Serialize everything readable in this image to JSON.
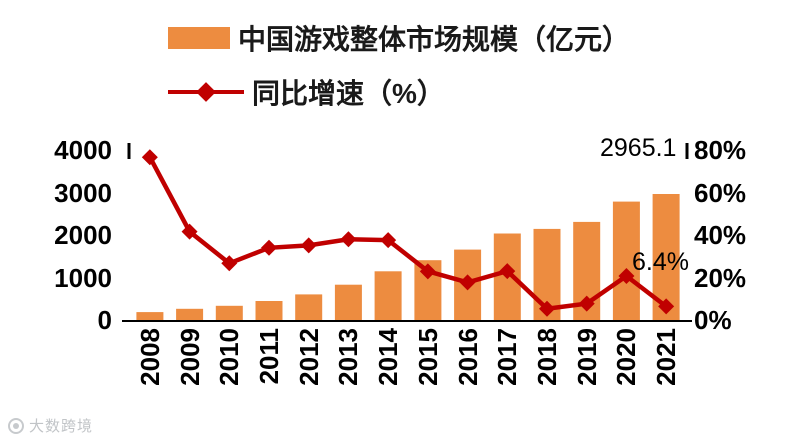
{
  "legend": {
    "bar_label": "中国游戏整体市场规模（亿元）",
    "line_label": "同比增速（%）"
  },
  "colors": {
    "bar": "#ED8C40",
    "line": "#C00000",
    "axis": "#000000"
  },
  "chart_data": {
    "type": "bar+line",
    "title": "",
    "categories": [
      "2008",
      "2009",
      "2010",
      "2011",
      "2012",
      "2013",
      "2014",
      "2015",
      "2016",
      "2017",
      "2018",
      "2019",
      "2020",
      "2021"
    ],
    "series": [
      {
        "name": "中国游戏整体市场规模（亿元）",
        "type": "bar",
        "axis": "left",
        "color": "#ED8C40",
        "values": [
          185.6,
          262.8,
          333.0,
          446.1,
          602.8,
          831.7,
          1144.8,
          1407.0,
          1655.7,
          2036.1,
          2144.4,
          2308.8,
          2786.9,
          2965.1
        ]
      },
      {
        "name": "同比增速（%）",
        "type": "line",
        "axis": "right",
        "color": "#C00000",
        "values": [
          76.6,
          41.6,
          26.7,
          34.0,
          35.1,
          38.0,
          37.6,
          22.9,
          17.7,
          23.0,
          5.3,
          7.7,
          20.7,
          6.4
        ]
      }
    ],
    "left_axis": {
      "min": 0,
      "max": 4000,
      "tick_labels": [
        "0",
        "1000",
        "2000",
        "3000",
        "4000"
      ]
    },
    "right_axis": {
      "min": 0,
      "max": 80,
      "tick_labels": [
        "0%",
        "20%",
        "40%",
        "60%",
        "80%"
      ]
    },
    "annotations": {
      "bar_value": "2965.1",
      "line_value": "6.4%"
    },
    "grid": false,
    "legend_position": "top-left"
  },
  "watermark": {
    "text": "大数跨境"
  }
}
